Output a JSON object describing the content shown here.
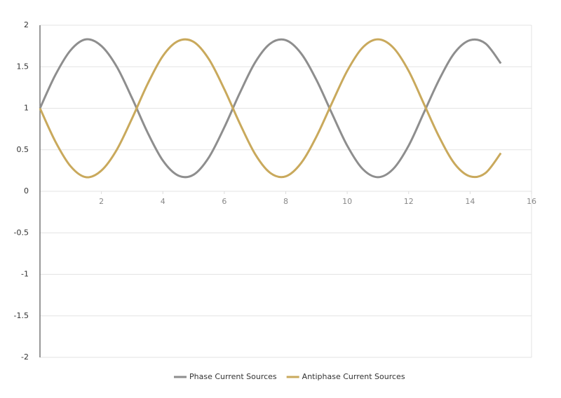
{
  "chart_data": {
    "type": "line",
    "x": [
      0,
      0.5,
      1,
      1.5,
      2,
      2.5,
      3,
      3.5,
      4,
      4.5,
      5,
      5.5,
      6,
      6.5,
      7,
      7.5,
      8,
      8.5,
      9,
      9.5,
      10,
      10.5,
      11,
      11.5,
      12,
      12.5,
      13,
      13.5,
      14,
      14.5,
      15
    ],
    "series": [
      {
        "name": "Phase Current Sources",
        "color": "#8e8e8e",
        "values": [
          1.0,
          1.4,
          1.7,
          1.83,
          1.75,
          1.5,
          1.12,
          0.71,
          0.37,
          0.19,
          0.2,
          0.41,
          0.77,
          1.18,
          1.55,
          1.78,
          1.82,
          1.66,
          1.34,
          0.94,
          0.55,
          0.27,
          0.17,
          0.27,
          0.55,
          0.95,
          1.35,
          1.67,
          1.82,
          1.78,
          1.54
        ]
      },
      {
        "name": "Antiphase Current Sources",
        "color": "#c9a95c",
        "values": [
          1.0,
          0.6,
          0.3,
          0.17,
          0.25,
          0.5,
          0.88,
          1.29,
          1.63,
          1.81,
          1.8,
          1.59,
          1.23,
          0.82,
          0.45,
          0.22,
          0.18,
          0.34,
          0.66,
          1.06,
          1.45,
          1.73,
          1.83,
          1.73,
          1.45,
          1.05,
          0.65,
          0.33,
          0.18,
          0.22,
          0.46
        ]
      }
    ],
    "xlim": [
      0,
      16
    ],
    "xticks": [
      2,
      4,
      6,
      8,
      10,
      12,
      14,
      16
    ],
    "ylim": [
      -2,
      2
    ],
    "yticks": [
      -2,
      -1.5,
      -1,
      -0.5,
      0,
      0.5,
      1,
      1.5,
      2
    ],
    "grid": true
  }
}
